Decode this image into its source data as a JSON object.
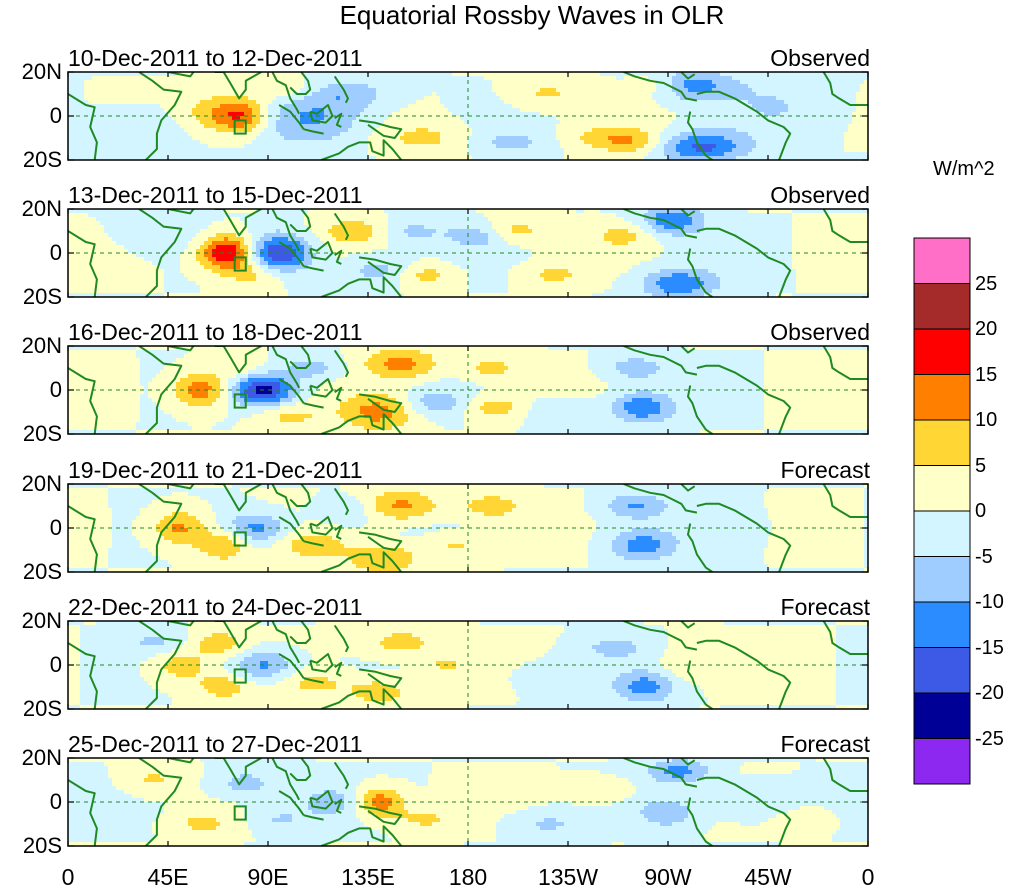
{
  "chart_data": {
    "type": "heatmap",
    "title": "Equatorial Rossby Waves in OLR",
    "units": "W/m^2",
    "x_ticks": [
      "0",
      "45E",
      "90E",
      "135E",
      "180",
      "135W",
      "90W",
      "45W",
      "0"
    ],
    "x_tick_values_deg_east": [
      0,
      45,
      90,
      135,
      180,
      225,
      270,
      315,
      360
    ],
    "y_ticks": [
      "20N",
      "0",
      "20S"
    ],
    "y_tick_values_deg": [
      20,
      0,
      -20
    ],
    "colorbar": {
      "levels": [
        -25,
        -20,
        -15,
        -10,
        -5,
        0,
        5,
        10,
        15,
        20,
        25
      ],
      "labels": [
        "25",
        "20",
        "15",
        "10",
        "5",
        "0",
        "-5",
        "-10",
        "-15",
        "-20",
        "-25"
      ],
      "colors_top_to_bottom": [
        "#ff6ec7",
        "#a52a2a",
        "#ff0000",
        "#ff7f00",
        "#ffd633",
        "#ffffc8",
        "#d2f5ff",
        "#a0cdff",
        "#2b8cff",
        "#3c5ae6",
        "#000096",
        "#8c28f0"
      ]
    },
    "panels": [
      {
        "dates": "10-Dec-2011 to 12-Dec-2011",
        "status": "Observed"
      },
      {
        "dates": "13-Dec-2011 to 15-Dec-2011",
        "status": "Observed"
      },
      {
        "dates": "16-Dec-2011 to 18-Dec-2011",
        "status": "Observed"
      },
      {
        "dates": "19-Dec-2011 to 21-Dec-2011",
        "status": "Forecast"
      },
      {
        "dates": "22-Dec-2011 to 24-Dec-2011",
        "status": "Forecast"
      },
      {
        "dates": "25-Dec-2011 to 27-Dec-2011",
        "status": "Forecast"
      }
    ],
    "blobs": [
      [
        {
          "lon": 78,
          "lat": 0,
          "v": 18,
          "sx": 9,
          "sy": 6
        },
        {
          "lon": 62,
          "lat": 2,
          "v": 6,
          "sx": 8,
          "sy": 6
        },
        {
          "lon": 125,
          "lat": 10,
          "v": -8,
          "sx": 15,
          "sy": 5
        },
        {
          "lon": 110,
          "lat": -2,
          "v": -10,
          "sx": 18,
          "sy": 8
        },
        {
          "lon": 160,
          "lat": -10,
          "v": 6,
          "sx": 14,
          "sy": 5
        },
        {
          "lon": 100,
          "lat": 12,
          "v": 6,
          "sx": 10,
          "sy": 4
        },
        {
          "lon": 200,
          "lat": -12,
          "v": -6,
          "sx": 12,
          "sy": 4
        },
        {
          "lon": 215,
          "lat": 10,
          "v": 6,
          "sx": 12,
          "sy": 5
        },
        {
          "lon": 240,
          "lat": -10,
          "v": 6,
          "sx": 12,
          "sy": 4
        },
        {
          "lon": 255,
          "lat": -12,
          "v": 8,
          "sx": 10,
          "sy": 4
        },
        {
          "lon": 285,
          "lat": -14,
          "v": -16,
          "sx": 14,
          "sy": 5
        },
        {
          "lon": 280,
          "lat": 14,
          "v": -12,
          "sx": 14,
          "sy": 5
        },
        {
          "lon": 265,
          "lat": 14,
          "v": 6,
          "sx": 8,
          "sy": 4
        },
        {
          "lon": 30,
          "lat": -6,
          "v": -4,
          "sx": 15,
          "sy": 8
        },
        {
          "lon": 320,
          "lat": 5,
          "v": -4,
          "sx": 20,
          "sy": 10
        }
      ],
      [
        {
          "lon": 72,
          "lat": 0,
          "v": 22,
          "sx": 9,
          "sy": 6
        },
        {
          "lon": 95,
          "lat": 0,
          "v": -20,
          "sx": 10,
          "sy": 6
        },
        {
          "lon": 85,
          "lat": -10,
          "v": 7,
          "sx": 8,
          "sy": 4
        },
        {
          "lon": 128,
          "lat": 10,
          "v": 8,
          "sx": 10,
          "sy": 4
        },
        {
          "lon": 140,
          "lat": -8,
          "v": -8,
          "sx": 12,
          "sy": 5
        },
        {
          "lon": 160,
          "lat": -10,
          "v": 8,
          "sx": 10,
          "sy": 4
        },
        {
          "lon": 155,
          "lat": 10,
          "v": -6,
          "sx": 10,
          "sy": 4
        },
        {
          "lon": 185,
          "lat": 8,
          "v": -8,
          "sx": 10,
          "sy": 4
        },
        {
          "lon": 200,
          "lat": 10,
          "v": 8,
          "sx": 10,
          "sy": 4
        },
        {
          "lon": 218,
          "lat": -10,
          "v": 6,
          "sx": 10,
          "sy": 4
        },
        {
          "lon": 250,
          "lat": 8,
          "v": 6,
          "sx": 10,
          "sy": 4
        },
        {
          "lon": 275,
          "lat": -14,
          "v": -14,
          "sx": 12,
          "sy": 5
        },
        {
          "lon": 272,
          "lat": 15,
          "v": -14,
          "sx": 10,
          "sy": 5
        },
        {
          "lon": 40,
          "lat": 10,
          "v": -4,
          "sx": 14,
          "sy": 7
        }
      ],
      [
        {
          "lon": 60,
          "lat": 0,
          "v": 14,
          "sx": 9,
          "sy": 6
        },
        {
          "lon": 88,
          "lat": 0,
          "v": -22,
          "sx": 10,
          "sy": 5
        },
        {
          "lon": 78,
          "lat": 10,
          "v": 5,
          "sx": 8,
          "sy": 4
        },
        {
          "lon": 110,
          "lat": 10,
          "v": -8,
          "sx": 10,
          "sy": 4
        },
        {
          "lon": 150,
          "lat": 12,
          "v": 12,
          "sx": 12,
          "sy": 5
        },
        {
          "lon": 140,
          "lat": -10,
          "v": 12,
          "sx": 12,
          "sy": 6
        },
        {
          "lon": 165,
          "lat": -6,
          "v": -8,
          "sx": 10,
          "sy": 4
        },
        {
          "lon": 190,
          "lat": 10,
          "v": 7,
          "sx": 10,
          "sy": 4
        },
        {
          "lon": 192,
          "lat": -8,
          "v": 8,
          "sx": 10,
          "sy": 4
        },
        {
          "lon": 220,
          "lat": -10,
          "v": -6,
          "sx": 10,
          "sy": 4
        },
        {
          "lon": 255,
          "lat": 10,
          "v": -8,
          "sx": 10,
          "sy": 4
        },
        {
          "lon": 258,
          "lat": -8,
          "v": -14,
          "sx": 10,
          "sy": 5
        },
        {
          "lon": 100,
          "lat": -12,
          "v": 6,
          "sx": 10,
          "sy": 4
        }
      ],
      [
        {
          "lon": 50,
          "lat": 0,
          "v": 12,
          "sx": 9,
          "sy": 6
        },
        {
          "lon": 70,
          "lat": -8,
          "v": 10,
          "sx": 8,
          "sy": 5
        },
        {
          "lon": 85,
          "lat": 0,
          "v": -12,
          "sx": 10,
          "sy": 5
        },
        {
          "lon": 110,
          "lat": -8,
          "v": 8,
          "sx": 10,
          "sy": 4
        },
        {
          "lon": 150,
          "lat": 10,
          "v": 12,
          "sx": 12,
          "sy": 5
        },
        {
          "lon": 142,
          "lat": -14,
          "v": 10,
          "sx": 12,
          "sy": 5
        },
        {
          "lon": 175,
          "lat": -8,
          "v": 6,
          "sx": 10,
          "sy": 4
        },
        {
          "lon": 190,
          "lat": 10,
          "v": 8,
          "sx": 10,
          "sy": 4
        },
        {
          "lon": 255,
          "lat": 10,
          "v": -10,
          "sx": 10,
          "sy": 4
        },
        {
          "lon": 258,
          "lat": -8,
          "v": -12,
          "sx": 10,
          "sy": 5
        },
        {
          "lon": 295,
          "lat": 0,
          "v": -3,
          "sx": 15,
          "sy": 8
        },
        {
          "lon": 125,
          "lat": 8,
          "v": -6,
          "sx": 10,
          "sy": 4
        }
      ],
      [
        {
          "lon": 40,
          "lat": 10,
          "v": -6,
          "sx": 10,
          "sy": 4
        },
        {
          "lon": 50,
          "lat": 0,
          "v": 8,
          "sx": 10,
          "sy": 6
        },
        {
          "lon": 68,
          "lat": 10,
          "v": 8,
          "sx": 8,
          "sy": 4
        },
        {
          "lon": 70,
          "lat": -10,
          "v": 8,
          "sx": 8,
          "sy": 4
        },
        {
          "lon": 88,
          "lat": 0,
          "v": -12,
          "sx": 10,
          "sy": 5
        },
        {
          "lon": 110,
          "lat": -8,
          "v": 6,
          "sx": 10,
          "sy": 4
        },
        {
          "lon": 150,
          "lat": 10,
          "v": 8,
          "sx": 12,
          "sy": 5
        },
        {
          "lon": 140,
          "lat": -12,
          "v": 8,
          "sx": 12,
          "sy": 5
        },
        {
          "lon": 170,
          "lat": 0,
          "v": 6,
          "sx": 8,
          "sy": 4
        },
        {
          "lon": 260,
          "lat": -10,
          "v": -12,
          "sx": 10,
          "sy": 5
        },
        {
          "lon": 245,
          "lat": 8,
          "v": -6,
          "sx": 12,
          "sy": 4
        },
        {
          "lon": 220,
          "lat": -5,
          "v": -4,
          "sx": 14,
          "sy": 6
        },
        {
          "lon": 275,
          "lat": 0,
          "v": 4,
          "sx": 8,
          "sy": 8
        }
      ],
      [
        {
          "lon": 38,
          "lat": 10,
          "v": 6,
          "sx": 10,
          "sy": 5
        },
        {
          "lon": 60,
          "lat": -10,
          "v": 6,
          "sx": 10,
          "sy": 4
        },
        {
          "lon": 80,
          "lat": 8,
          "v": -8,
          "sx": 10,
          "sy": 5
        },
        {
          "lon": 95,
          "lat": -8,
          "v": -6,
          "sx": 10,
          "sy": 4
        },
        {
          "lon": 118,
          "lat": 0,
          "v": -7,
          "sx": 10,
          "sy": 5
        },
        {
          "lon": 140,
          "lat": 0,
          "v": 14,
          "sx": 8,
          "sy": 5
        },
        {
          "lon": 160,
          "lat": -8,
          "v": 6,
          "sx": 10,
          "sy": 4
        },
        {
          "lon": 215,
          "lat": -10,
          "v": -6,
          "sx": 12,
          "sy": 4
        },
        {
          "lon": 240,
          "lat": 5,
          "v": 6,
          "sx": 10,
          "sy": 4
        },
        {
          "lon": 270,
          "lat": -5,
          "v": -8,
          "sx": 10,
          "sy": 5
        },
        {
          "lon": 275,
          "lat": 14,
          "v": -12,
          "sx": 10,
          "sy": 4
        },
        {
          "lon": 312,
          "lat": 0,
          "v": -6,
          "sx": 12,
          "sy": 6
        },
        {
          "lon": 330,
          "lat": -8,
          "v": 4,
          "sx": 10,
          "sy": 4
        }
      ]
    ]
  }
}
